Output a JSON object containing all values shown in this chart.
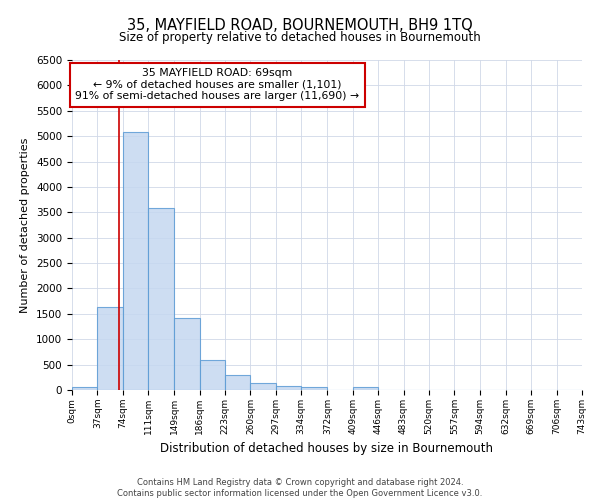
{
  "title": "35, MAYFIELD ROAD, BOURNEMOUTH, BH9 1TQ",
  "subtitle": "Size of property relative to detached houses in Bournemouth",
  "xlabel": "Distribution of detached houses by size in Bournemouth",
  "ylabel": "Number of detached properties",
  "bin_edges": [
    0,
    37,
    74,
    111,
    149,
    186,
    223,
    260,
    297,
    334,
    372,
    409,
    446,
    483,
    520,
    557,
    594,
    632,
    669,
    706,
    743
  ],
  "bar_heights": [
    60,
    1630,
    5080,
    3580,
    1420,
    590,
    300,
    140,
    80,
    50,
    0,
    50,
    0,
    0,
    0,
    0,
    0,
    0,
    0,
    0
  ],
  "bar_color": "#c5d8f0",
  "bar_edge_color": "#5b9bd5",
  "vline_x": 69,
  "vline_color": "#cc0000",
  "ylim": [
    0,
    6500
  ],
  "yticks": [
    0,
    500,
    1000,
    1500,
    2000,
    2500,
    3000,
    3500,
    4000,
    4500,
    5000,
    5500,
    6000,
    6500
  ],
  "annotation_line1": "35 MAYFIELD ROAD: 69sqm",
  "annotation_line2": "← 9% of detached houses are smaller (1,101)",
  "annotation_line3": "91% of semi-detached houses are larger (11,690) →",
  "grid_color": "#d0d8e8",
  "bg_color": "#ffffff",
  "footer_text": "Contains HM Land Registry data © Crown copyright and database right 2024.\nContains public sector information licensed under the Open Government Licence v3.0.",
  "tick_labels": [
    "0sqm",
    "37sqm",
    "74sqm",
    "111sqm",
    "149sqm",
    "186sqm",
    "223sqm",
    "260sqm",
    "297sqm",
    "334sqm",
    "372sqm",
    "409sqm",
    "446sqm",
    "483sqm",
    "520sqm",
    "557sqm",
    "594sqm",
    "632sqm",
    "669sqm",
    "706sqm",
    "743sqm"
  ]
}
